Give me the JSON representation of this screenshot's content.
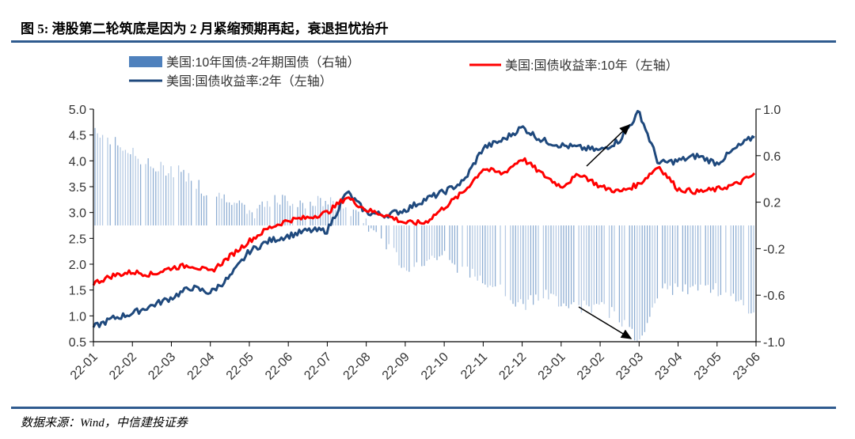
{
  "title": "图 5: 港股第二轮筑底是因为 2 月紧缩预期再起，衰退担忧抬升",
  "source": "数据来源：Wind，中信建投证券",
  "chart_data": {
    "type": "line+bar",
    "title": "图 5: 港股第二轮筑底是因为 2 月紧缩预期再起，衰退担忧抬升",
    "legend": [
      {
        "name": "美国:10年国债-2年期国债（右轴）",
        "type": "bar",
        "color": "#4f81bd"
      },
      {
        "name": "美国:国债收益率:10年（左轴）",
        "type": "line",
        "color": "#ff0000"
      },
      {
        "name": "美国:国债收益率:2年（左轴）",
        "type": "line",
        "color": "#1f497d"
      }
    ],
    "left_axis": {
      "ylim": [
        0.5,
        5.0
      ],
      "ticks": [
        "5.0",
        "4.5",
        "4.0",
        "3.5",
        "3.0",
        "2.5",
        "2.0",
        "1.5",
        "1.0",
        "0.5"
      ]
    },
    "right_axis": {
      "ylim": [
        -1.0,
        1.0
      ],
      "ticks": [
        "1.0",
        "0.6",
        "0.2",
        "-0.2",
        "-0.6",
        "-1.0"
      ]
    },
    "x_ticks": [
      "22-01",
      "22-02",
      "22-03",
      "22-04",
      "22-05",
      "22-06",
      "22-07",
      "22-08",
      "22-09",
      "22-10",
      "22-11",
      "22-12",
      "23-01",
      "23-02",
      "23-03",
      "23-04",
      "23-05",
      "23-06"
    ],
    "x": [
      0,
      0.5,
      1,
      1.5,
      2,
      2.5,
      3,
      3.5,
      4,
      4.5,
      5,
      5.5,
      6,
      6.5,
      7,
      7.5,
      8,
      8.5,
      9,
      9.5,
      10,
      10.5,
      11,
      11.5,
      12,
      12.5,
      13,
      13.5,
      14,
      14.5,
      15,
      15.5,
      16,
      16.5,
      17
    ],
    "series": [
      {
        "name": "美国:国债收益率:10年（左轴）",
        "axis": "left",
        "values": [
          1.63,
          1.78,
          1.85,
          1.8,
          1.93,
          1.98,
          1.85,
          2.15,
          2.45,
          2.7,
          2.85,
          2.9,
          3.0,
          3.3,
          3.05,
          2.95,
          2.8,
          2.8,
          3.1,
          3.4,
          3.85,
          3.75,
          4.05,
          3.75,
          3.5,
          3.75,
          3.5,
          3.4,
          3.55,
          3.9,
          3.45,
          3.4,
          3.45,
          3.55,
          3.75
        ]
      },
      {
        "name": "美国:国债收益率:2年（左轴）",
        "axis": "left",
        "values": [
          0.78,
          0.95,
          1.05,
          1.2,
          1.35,
          1.55,
          1.45,
          1.75,
          2.25,
          2.45,
          2.55,
          2.65,
          2.65,
          3.4,
          3.0,
          2.95,
          3.05,
          3.25,
          3.4,
          3.6,
          4.25,
          4.4,
          4.65,
          4.4,
          4.3,
          4.25,
          4.2,
          4.4,
          4.95,
          3.95,
          4.0,
          4.1,
          3.95,
          4.25,
          4.5
        ]
      },
      {
        "name": "美国:10年国债-2年期国债（右轴）",
        "axis": "right",
        "type": "bar",
        "values": [
          0.85,
          0.72,
          0.62,
          0.5,
          0.48,
          0.42,
          0.25,
          0.25,
          0.08,
          0.2,
          0.22,
          0.2,
          0.2,
          0.15,
          0.02,
          -0.15,
          -0.35,
          -0.3,
          -0.25,
          -0.4,
          -0.45,
          -0.55,
          -0.7,
          -0.6,
          -0.65,
          -0.7,
          -0.7,
          -0.8,
          -1.0,
          -0.55,
          -0.55,
          -0.55,
          -0.55,
          -0.6,
          -0.8
        ]
      }
    ],
    "annotations": [
      {
        "type": "arrow",
        "label": "2-year yield rising into 23-03"
      },
      {
        "type": "arrow",
        "label": "spread falling toward -1.0 into 23-03"
      }
    ]
  }
}
